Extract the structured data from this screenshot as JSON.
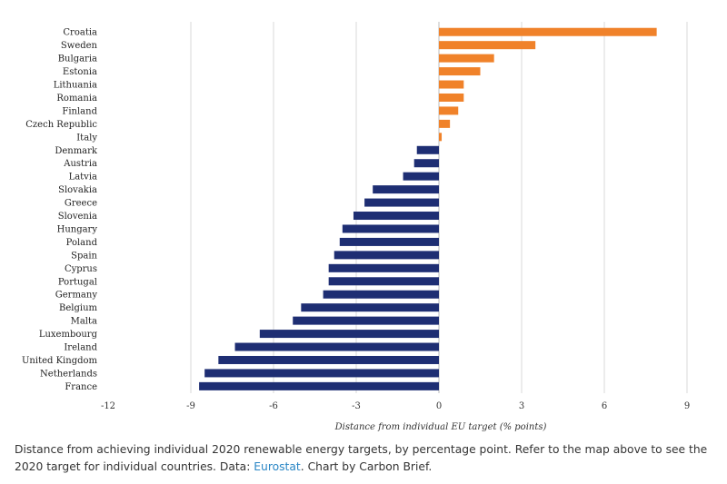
{
  "chart_data": {
    "type": "bar",
    "orientation": "horizontal",
    "title": "",
    "xlabel": "Distance from individual EU target (% points)",
    "ylabel": "",
    "xlim": [
      -12,
      9
    ],
    "xticks": [
      -12,
      -9,
      -6,
      -3,
      0,
      3,
      6,
      9
    ],
    "xtick_labels": [
      "-12",
      "-9",
      "-6",
      "-3",
      "0",
      "3",
      "6",
      "9"
    ],
    "grid": true,
    "categories": [
      "Croatia",
      "Sweden",
      "Bulgaria",
      "Estonia",
      "Lithuania",
      "Romania",
      "Finland",
      "Czech Republic",
      "Italy",
      "Denmark",
      "Austria",
      "Latvia",
      "Slovakia",
      "Greece",
      "Slovenia",
      "Hungary",
      "Poland",
      "Spain",
      "Cyprus",
      "Portugal",
      "Germany",
      "Belgium",
      "Malta",
      "Luxembourg",
      "Ireland",
      "United Kingdom",
      "Netherlands",
      "France"
    ],
    "values": [
      7.9,
      3.5,
      2.0,
      1.5,
      0.9,
      0.9,
      0.7,
      0.4,
      0.1,
      -0.8,
      -0.9,
      -1.3,
      -2.4,
      -2.7,
      -3.1,
      -3.5,
      -3.6,
      -3.8,
      -4.0,
      -4.0,
      -4.2,
      -5.0,
      -5.3,
      -6.5,
      -7.4,
      -8.0,
      -8.5,
      -8.7
    ],
    "colors": {
      "positive": "#f0822a",
      "negative": "#1e2e73"
    }
  },
  "caption": {
    "text_before": "Distance from achieving individual 2020 renewable energy targets, by percentage point. Refer to the map above to see the 2020 target for individual countries. Data: ",
    "link_text": "Eurostat",
    "text_after": ". Chart by Carbon Brief."
  }
}
